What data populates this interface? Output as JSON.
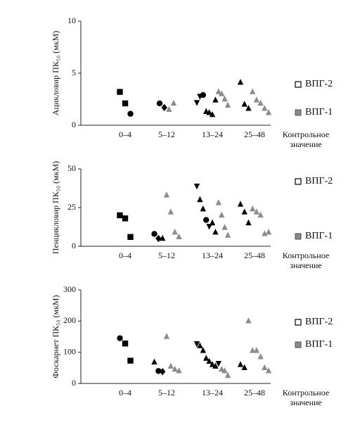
{
  "chart_data": [
    {
      "type": "scatter",
      "ylabel": "Ацикловир ПК₅₀ (мкМ)",
      "categories": [
        "0–4",
        "5–12",
        "13–24",
        "25–48",
        "Контрольное значение"
      ],
      "ylim": [
        0,
        10
      ],
      "yticks": [
        0,
        5,
        10
      ],
      "series": [
        {
          "name": "ВПГ-2",
          "color": "#000000",
          "legend_marker": "open",
          "x": [
            "0–4",
            "0–4",
            "0–4",
            "5–12",
            "5–12",
            "13–24",
            "13–24",
            "13–24",
            "13–24",
            "13–24",
            "13–24",
            "13–24",
            "25–48",
            "25–48",
            "25–48"
          ],
          "values": [
            3.2,
            2.1,
            1.1,
            2.1,
            1.7,
            2.2,
            2.8,
            2.9,
            1.3,
            1.2,
            1.0,
            2.4,
            4.1,
            2.0,
            1.6
          ],
          "markers": [
            "square",
            "square",
            "circle",
            "circle",
            "diamond",
            "triangle-down",
            "triangle-down",
            "circle",
            "triangle",
            "triangle",
            "triangle",
            "triangle",
            "triangle",
            "triangle",
            "triangle"
          ]
        },
        {
          "name": "ВПГ-1",
          "color": "#8c8c8c",
          "legend_marker": "filled",
          "x": [
            "5–12",
            "5–12",
            "13–24",
            "13–24",
            "13–24",
            "13–24",
            "25–48",
            "25–48",
            "25–48",
            "25–48",
            "25–48"
          ],
          "values": [
            1.5,
            2.1,
            3.2,
            3.0,
            2.5,
            1.9,
            3.2,
            2.4,
            2.1,
            1.6,
            1.2
          ],
          "markers": [
            "triangle",
            "triangle",
            "triangle",
            "triangle",
            "triangle",
            "triangle",
            "triangle",
            "triangle",
            "triangle",
            "triangle",
            "triangle"
          ]
        }
      ]
    },
    {
      "type": "scatter",
      "ylabel": "Пенцикловир ПК₅₀ (мкМ)",
      "categories": [
        "0–4",
        "5–12",
        "13–24",
        "25–48",
        "Контрольное значение"
      ],
      "ylim": [
        0,
        50
      ],
      "yticks": [
        0,
        25,
        50
      ],
      "series": [
        {
          "name": "ВПГ-2",
          "color": "#000000",
          "legend_marker": "open",
          "x": [
            "0–4",
            "0–4",
            "0–4",
            "5–12",
            "5–12",
            "5–12",
            "13–24",
            "13–24",
            "13–24",
            "13–24",
            "13–24",
            "13–24",
            "13–24",
            "25–48",
            "25–48",
            "25–48"
          ],
          "values": [
            20,
            18,
            6,
            8,
            5,
            5,
            39,
            30,
            24,
            17,
            13,
            15,
            9,
            27,
            22,
            15
          ],
          "markers": [
            "square",
            "square",
            "square",
            "circle",
            "diamond",
            "triangle",
            "triangle-down",
            "triangle",
            "triangle",
            "circle",
            "triangle-down",
            "triangle",
            "triangle",
            "triangle",
            "triangle",
            "triangle"
          ]
        },
        {
          "name": "ВПГ-1",
          "color": "#8c8c8c",
          "legend_marker": "filled",
          "x": [
            "5–12",
            "5–12",
            "5–12",
            "5–12",
            "13–24",
            "13–24",
            "13–24",
            "13–24",
            "25–48",
            "25–48",
            "25–48",
            "25–48",
            "25–48"
          ],
          "values": [
            33,
            22,
            9,
            6,
            28,
            20,
            12,
            7,
            24,
            22,
            20,
            8,
            9
          ],
          "markers": [
            "triangle",
            "triangle",
            "triangle",
            "triangle",
            "triangle",
            "triangle",
            "triangle",
            "triangle",
            "triangle",
            "triangle",
            "triangle",
            "triangle",
            "triangle"
          ]
        }
      ]
    },
    {
      "type": "scatter",
      "ylabel": "Фоскарнет ПК₅₀ (мкМ)",
      "categories": [
        "0–4",
        "5–12",
        "13–24",
        "25–48",
        "Контрольное значение"
      ],
      "ylim": [
        0,
        300
      ],
      "yticks": [
        0,
        100,
        200,
        300
      ],
      "series": [
        {
          "name": "ВПГ-2",
          "color": "#000000",
          "legend_marker": "open",
          "x": [
            "0–4",
            "0–4",
            "0–4",
            "5–12",
            "5–12",
            "5–12",
            "13–24",
            "13–24",
            "13–24",
            "13–24",
            "13–24",
            "13–24",
            "13–24",
            "13–24",
            "25–48",
            "25–48"
          ],
          "values": [
            145,
            128,
            73,
            68,
            40,
            38,
            128,
            120,
            105,
            80,
            70,
            60,
            55,
            65,
            60,
            50
          ],
          "markers": [
            "circle",
            "square",
            "square",
            "triangle",
            "circle",
            "diamond",
            "triangle-down",
            "triangle",
            "triangle",
            "triangle",
            "triangle",
            "triangle",
            "triangle",
            "triangle-down",
            "triangle",
            "triangle"
          ]
        },
        {
          "name": "ВПГ-1",
          "color": "#8c8c8c",
          "legend_marker": "filled",
          "x": [
            "5–12",
            "5–12",
            "5–12",
            "5–12",
            "13–24",
            "13–24",
            "13–24",
            "25–48",
            "25–48",
            "25–48",
            "25–48",
            "25–48",
            "25–48"
          ],
          "values": [
            150,
            55,
            45,
            40,
            45,
            40,
            25,
            200,
            105,
            105,
            85,
            50,
            40
          ],
          "markers": [
            "triangle",
            "triangle",
            "triangle",
            "triangle",
            "triangle",
            "triangle",
            "triangle",
            "triangle",
            "triangle",
            "triangle",
            "triangle",
            "triangle",
            "triangle"
          ]
        }
      ]
    }
  ]
}
